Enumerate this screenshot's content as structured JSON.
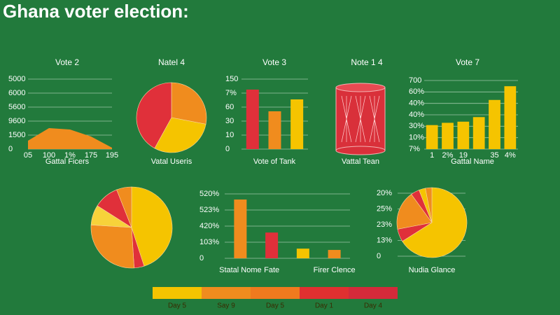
{
  "title": "Ghana voter election:",
  "chart_data": [
    {
      "type": "area",
      "title": "Vote 2",
      "xlabel": "Gattal Ficers",
      "color": "#f08c1e",
      "categories": [
        "05",
        "100",
        "1%",
        "175",
        "195"
      ],
      "values": [
        0.6,
        1.5,
        1.4,
        0.9,
        0.1
      ],
      "ylim": [
        0,
        5
      ],
      "yticks": [
        0,
        {
          "value": 1,
          "label": "1500"
        },
        {
          "value": 2,
          "label": "9600"
        },
        {
          "value": 3,
          "label": "5600"
        },
        {
          "value": 4,
          "label": "6000"
        },
        {
          "value": 5,
          "label": "5000"
        }
      ],
      "grid": true
    },
    {
      "type": "pie",
      "title": "Natel 4",
      "xlabel": "Vatal Useris",
      "values": [
        28,
        30,
        42
      ],
      "colors": [
        "#f08c1e",
        "#f5c400",
        "#e0303a"
      ]
    },
    {
      "type": "bar",
      "title": "Vote 3",
      "xlabel": "Vote of Tank",
      "values": [
        4.25,
        2.7,
        3.55
      ],
      "colors": [
        "#e0303a",
        "#f08c1e",
        "#f5c400"
      ],
      "ylim": [
        0,
        5
      ],
      "yticks": [
        0,
        {
          "value": 1,
          "label": "10"
        },
        {
          "value": 2,
          "label": "30"
        },
        {
          "value": 3,
          "label": "60"
        },
        {
          "value": 4,
          "label": "7%"
        },
        {
          "value": 5,
          "label": "150"
        }
      ],
      "grid": true
    },
    {
      "type": "illustration",
      "title": "Note 1 4",
      "xlabel": "Vattal Tean"
    },
    {
      "type": "bar",
      "title": "Vote 7",
      "xlabel": "Gattal Name",
      "color": "#f5c400",
      "categories": [
        "1",
        "2%",
        "19",
        null,
        "35",
        "4%"
      ],
      "values": [
        2.1,
        2.3,
        2.4,
        2.8,
        4.3,
        5.5
      ],
      "ylim": [
        0,
        6
      ],
      "yticks": [
        {
          "value": 0,
          "label": "7%"
        },
        {
          "value": 1,
          "label": "10%"
        },
        {
          "value": 2,
          "label": "30%"
        },
        {
          "value": 3,
          "label": "40%"
        },
        {
          "value": 4,
          "label": "40%"
        },
        {
          "value": 5,
          "label": "60%"
        },
        {
          "value": 6,
          "label": "700"
        }
      ],
      "grid": true
    },
    {
      "type": "pie",
      "values": [
        45,
        4,
        27,
        8,
        10,
        6
      ],
      "colors": [
        "#f5c400",
        "#e0303a",
        "#f08c1e",
        "#f7d23a",
        "#e0303a",
        "#f08c1e"
      ]
    },
    {
      "type": "bar",
      "colors": [
        "#f08c1e",
        "#e0303a",
        "#f5c400",
        "#f08c1e"
      ],
      "categories": [
        "Statal Nome",
        "Fate",
        null,
        "Firer Clence"
      ],
      "values": [
        3.65,
        1.6,
        0.6,
        0.52
      ],
      "ylim": [
        0,
        4
      ],
      "yticks": [
        0,
        {
          "value": 1,
          "label": "103%"
        },
        {
          "value": 2,
          "label": "420%"
        },
        {
          "value": 3,
          "label": "523%"
        },
        {
          "value": 4,
          "label": "520%"
        }
      ],
      "grid": true
    },
    {
      "type": "pie",
      "xlabel": "Nudia Glance",
      "values": [
        66,
        6,
        18,
        4,
        3,
        3
      ],
      "colors": [
        "#f5c400",
        "#e0303a",
        "#f08c1e",
        "#e0303a",
        "#f5c400",
        "#f08c1e"
      ],
      "ylim": [
        0,
        4
      ],
      "yticks": [
        0,
        {
          "value": 1,
          "label": "13%"
        },
        {
          "value": 2,
          "label": "23%"
        },
        {
          "value": 3,
          "label": "25%"
        },
        {
          "value": 4,
          "label": "20%"
        }
      ],
      "grid": true
    }
  ],
  "legend": {
    "items": [
      {
        "label": "Day 5",
        "color": "#f5c400"
      },
      {
        "label": "Say 9",
        "color": "#f08c1e"
      },
      {
        "label": "Day 5",
        "color": "#f07a1e"
      },
      {
        "label": "Day 1",
        "color": "#e03030"
      },
      {
        "label": "Day 4",
        "color": "#d42a3a"
      }
    ]
  }
}
